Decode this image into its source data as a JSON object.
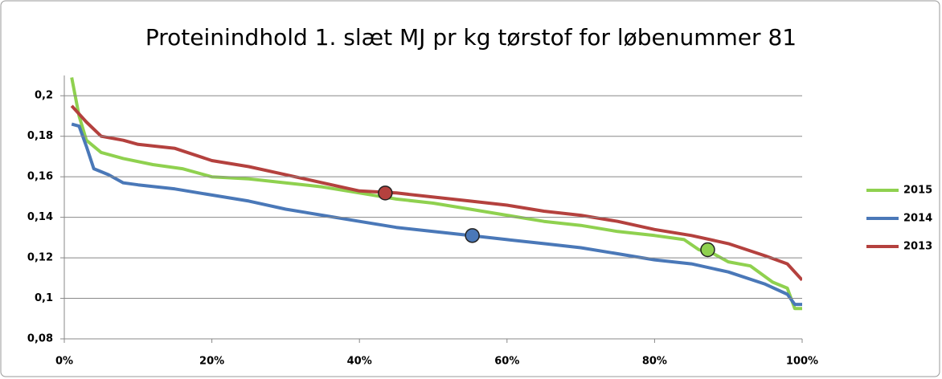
{
  "chart_data": {
    "type": "line",
    "title": "Proteinindhold 1. slæt MJ pr kg tørstof for løbenummer 81",
    "xlim": [
      0,
      100
    ],
    "xticks": [
      {
        "value": 0,
        "label": "0%"
      },
      {
        "value": 20,
        "label": "20%"
      },
      {
        "value": 40,
        "label": "40%"
      },
      {
        "value": 60,
        "label": "60%"
      },
      {
        "value": 80,
        "label": "80%"
      },
      {
        "value": 100,
        "label": "100%"
      }
    ],
    "ylim": [
      0.08,
      0.21
    ],
    "yticks": [
      {
        "value": 0.08,
        "label": "0,08"
      },
      {
        "value": 0.1,
        "label": "0,1"
      },
      {
        "value": 0.12,
        "label": "0,12"
      },
      {
        "value": 0.14,
        "label": "0,14"
      },
      {
        "value": 0.16,
        "label": "0,16"
      },
      {
        "value": 0.18,
        "label": "0,18"
      },
      {
        "value": 0.2,
        "label": "0,2"
      }
    ],
    "grid": true,
    "legend": "right",
    "series": [
      {
        "name": "2015",
        "color": "#8fd14f",
        "x": [
          1,
          2,
          3,
          5,
          8,
          12,
          16,
          20,
          25,
          30,
          35,
          40,
          45,
          50,
          55,
          60,
          65,
          70,
          75,
          80,
          84,
          86,
          88,
          90,
          93,
          96,
          98,
          99,
          100
        ],
        "values": [
          0.209,
          0.19,
          0.178,
          0.172,
          0.169,
          0.166,
          0.164,
          0.16,
          0.159,
          0.157,
          0.155,
          0.152,
          0.149,
          0.147,
          0.144,
          0.141,
          0.138,
          0.136,
          0.133,
          0.131,
          0.129,
          0.124,
          0.122,
          0.118,
          0.116,
          0.108,
          0.105,
          0.095,
          0.095
        ],
        "marker": {
          "x": 87.2,
          "y": 0.124
        }
      },
      {
        "name": "2014",
        "color": "#4a78b8",
        "x": [
          1,
          2,
          3,
          4,
          6,
          8,
          10,
          15,
          20,
          25,
          30,
          35,
          40,
          45,
          50,
          55,
          60,
          65,
          70,
          75,
          80,
          85,
          90,
          95,
          98,
          99,
          100
        ],
        "values": [
          0.186,
          0.185,
          0.175,
          0.164,
          0.161,
          0.157,
          0.156,
          0.154,
          0.151,
          0.148,
          0.144,
          0.141,
          0.138,
          0.135,
          0.133,
          0.131,
          0.129,
          0.127,
          0.125,
          0.122,
          0.119,
          0.117,
          0.113,
          0.107,
          0.102,
          0.097,
          0.097
        ],
        "marker": {
          "x": 55.3,
          "y": 0.131
        }
      },
      {
        "name": "2013",
        "color": "#b4413e",
        "x": [
          1,
          3,
          5,
          8,
          10,
          15,
          20,
          25,
          30,
          35,
          40,
          45,
          50,
          55,
          60,
          65,
          70,
          75,
          80,
          85,
          90,
          95,
          98,
          100
        ],
        "values": [
          0.195,
          0.187,
          0.18,
          0.178,
          0.176,
          0.174,
          0.168,
          0.165,
          0.161,
          0.157,
          0.153,
          0.152,
          0.15,
          0.148,
          0.146,
          0.143,
          0.141,
          0.138,
          0.134,
          0.131,
          0.127,
          0.121,
          0.117,
          0.109
        ],
        "marker": {
          "x": 43.5,
          "y": 0.152
        }
      }
    ]
  }
}
